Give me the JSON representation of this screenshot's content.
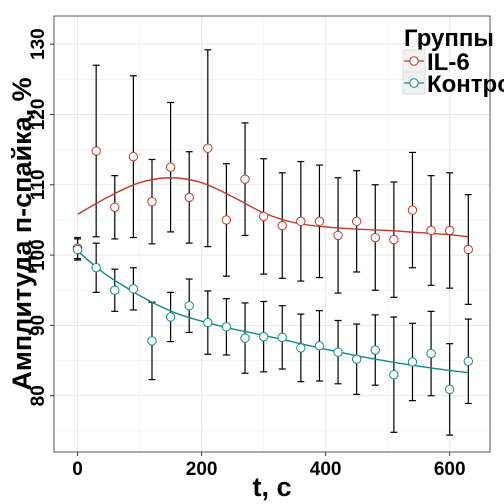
{
  "chart_data": {
    "type": "scatter",
    "xlabel": "t, c",
    "ylabel": "Амплитуда п-спайка, %",
    "xlim": [
      -38,
      665
    ],
    "ylim": [
      72,
      134
    ],
    "xticks": [
      0,
      200,
      400,
      600
    ],
    "yticks": [
      80,
      90,
      100,
      110,
      120,
      130
    ],
    "grid": true,
    "legend": {
      "title": "Группы",
      "position": "top-right"
    },
    "series": [
      {
        "name": "IL-6",
        "color": "#c0392b",
        "x": [
          0,
          30,
          60,
          90,
          120,
          150,
          180,
          210,
          240,
          270,
          300,
          330,
          360,
          390,
          420,
          450,
          480,
          510,
          540,
          570,
          600,
          630
        ],
        "y": [
          101,
          114.8,
          106.8,
          114,
          107.6,
          112.5,
          108.2,
          115.2,
          105,
          110.8,
          105.5,
          104.2,
          104.8,
          104.8,
          102.8,
          104.8,
          102.5,
          102.2,
          106.4,
          103.5,
          103.5,
          100.8
        ],
        "err": [
          1.5,
          12.2,
          4.5,
          11.5,
          6.0,
          9.2,
          6.5,
          14,
          8.0,
          8.0,
          8.2,
          7.5,
          8.5,
          8.0,
          8.2,
          7.2,
          7.5,
          8.2,
          8.2,
          7.8,
          8.2,
          7.8
        ],
        "trend": [
          [
            0,
            105.8
          ],
          [
            50,
            108.3
          ],
          [
            100,
            110.3
          ],
          [
            150,
            111
          ],
          [
            200,
            110.3
          ],
          [
            250,
            108.3
          ],
          [
            300,
            106
          ],
          [
            350,
            104.6
          ],
          [
            400,
            104
          ],
          [
            450,
            103.7
          ],
          [
            500,
            103.5
          ],
          [
            550,
            103.2
          ],
          [
            600,
            102.9
          ],
          [
            630,
            102.6
          ]
        ]
      },
      {
        "name": "Контроль",
        "color": "#0f8b8d",
        "x": [
          0,
          30,
          60,
          90,
          120,
          150,
          180,
          210,
          240,
          270,
          300,
          330,
          360,
          390,
          420,
          450,
          480,
          510,
          540,
          570,
          600,
          630
        ],
        "y": [
          100.8,
          98.2,
          95,
          95.2,
          87.8,
          91.2,
          92.8,
          90.4,
          89.8,
          88.2,
          88.4,
          88.3,
          86.8,
          87.1,
          86.2,
          85.2,
          86.5,
          83,
          84.8,
          86,
          80.9,
          84.9
        ],
        "err": [
          1.5,
          3.5,
          3.0,
          3.0,
          5.5,
          3.5,
          3.8,
          4.5,
          4.0,
          5.0,
          5.0,
          4.5,
          4.8,
          5.0,
          4.5,
          5.0,
          5.0,
          8.2,
          5.5,
          6.0,
          6.5,
          6.0
        ],
        "trend": [
          [
            0,
            100.6
          ],
          [
            40,
            97.6
          ],
          [
            80,
            95.3
          ],
          [
            120,
            93.3
          ],
          [
            160,
            91.7
          ],
          [
            200,
            90.6
          ],
          [
            250,
            89.5
          ],
          [
            300,
            88.6
          ],
          [
            350,
            87.6
          ],
          [
            400,
            86.6
          ],
          [
            450,
            85.7
          ],
          [
            500,
            84.9
          ],
          [
            550,
            84.2
          ],
          [
            600,
            83.6
          ],
          [
            630,
            83.3
          ]
        ]
      }
    ]
  }
}
